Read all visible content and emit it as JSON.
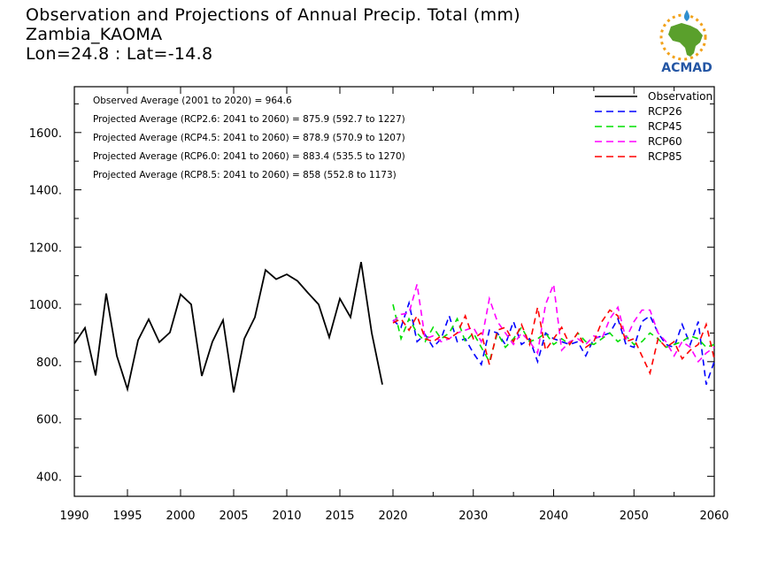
{
  "title_lines": [
    "Observation and Projections of Annual Precip. Total (mm)",
    "Zambia_KAOMA",
    "Lon=24.8 : Lat=-14.8"
  ],
  "logo": {
    "text": "ACMAD",
    "colors": {
      "africa": "#5aa02c",
      "text": "#2456a4",
      "sun": "#f2a21b"
    }
  },
  "chart_data": {
    "type": "line",
    "xlim": [
      1990,
      2060
    ],
    "ylim": [
      330,
      1760
    ],
    "x_ticks_labeled": [
      1990,
      1995,
      2000,
      2005,
      2010,
      2015,
      2020,
      2030,
      2040,
      2050,
      2060
    ],
    "y_ticks_labeled": [
      {
        "v": 400,
        "label": "400."
      },
      {
        "v": 600,
        "label": "600."
      },
      {
        "v": 800,
        "label": "800."
      },
      {
        "v": 1000,
        "label": "1000."
      },
      {
        "v": 1200,
        "label": "1200."
      },
      {
        "v": 1400,
        "label": "1400."
      },
      {
        "v": 1600,
        "label": "1600."
      }
    ],
    "annotations": [
      "Observed Average (2001 to 2020) = 964.6",
      "Projected Average (RCP2.6: 2041 to 2060) = 875.9 (592.7 to 1227)",
      "Projected Average (RCP4.5: 2041 to 2060) = 878.9 (570.9 to 1207)",
      "Projected Average (RCP6.0: 2041 to 2060) = 883.4 (535.5 to 1270)",
      "Projected Average (RCP8.5: 2041 to 2060) = 858 (552.8 to 1173)"
    ],
    "legend_position": "top-right",
    "series": [
      {
        "name": "Observation",
        "color": "#000000",
        "dashed": false,
        "x": [
          1990,
          1991,
          1992,
          1993,
          1994,
          1995,
          1996,
          1997,
          1998,
          1999,
          2000,
          2001,
          2002,
          2003,
          2004,
          2005,
          2006,
          2007,
          2008,
          2009,
          2010,
          2011,
          2012,
          2013,
          2014,
          2015,
          2016,
          2017,
          2018,
          2019
        ],
        "values": [
          863,
          918,
          752,
          1038,
          820,
          704,
          875,
          948,
          868,
          902,
          1035,
          1000,
          750,
          870,
          945,
          693,
          880,
          955,
          1120,
          1088,
          1105,
          1082,
          1040,
          1000,
          885,
          1020,
          955,
          1148,
          900,
          720
        ]
      },
      {
        "name": "RCP26",
        "color": "#0000ff",
        "dashed": true,
        "x": [
          2020,
          2021,
          2022,
          2023,
          2024,
          2025,
          2026,
          2027,
          2028,
          2029,
          2030,
          2031,
          2032,
          2033,
          2034,
          2035,
          2036,
          2037,
          2038,
          2039,
          2040,
          2041,
          2042,
          2043,
          2044,
          2045,
          2046,
          2047,
          2048,
          2049,
          2050,
          2051,
          2052,
          2053,
          2054,
          2055,
          2056,
          2057,
          2058,
          2059,
          2060
        ],
        "values": [
          945,
          920,
          1005,
          870,
          895,
          850,
          880,
          960,
          870,
          880,
          830,
          790,
          910,
          900,
          860,
          940,
          860,
          880,
          800,
          900,
          880,
          870,
          860,
          870,
          820,
          880,
          890,
          900,
          950,
          860,
          850,
          940,
          960,
          900,
          860,
          850,
          930,
          860,
          940,
          720,
          800
        ]
      },
      {
        "name": "RCP45",
        "color": "#00e000",
        "dashed": true,
        "x": [
          2020,
          2021,
          2022,
          2023,
          2024,
          2025,
          2026,
          2027,
          2028,
          2029,
          2030,
          2031,
          2032,
          2033,
          2034,
          2035,
          2036,
          2037,
          2038,
          2039,
          2040,
          2041,
          2042,
          2043,
          2044,
          2045,
          2046,
          2047,
          2048,
          2049,
          2050,
          2051,
          2052,
          2053,
          2054,
          2055,
          2056,
          2057,
          2058,
          2059,
          2060
        ],
        "values": [
          1000,
          880,
          950,
          900,
          870,
          920,
          880,
          900,
          950,
          870,
          900,
          850,
          800,
          900,
          850,
          880,
          920,
          870,
          880,
          900,
          860,
          880,
          860,
          900,
          870,
          860,
          880,
          900,
          870,
          890,
          860,
          870,
          900,
          880,
          850,
          860,
          870,
          890,
          880,
          850,
          860
        ]
      },
      {
        "name": "RCP60",
        "color": "#ff00ff",
        "dashed": true,
        "x": [
          2020,
          2021,
          2022,
          2023,
          2024,
          2025,
          2026,
          2027,
          2028,
          2029,
          2030,
          2031,
          2032,
          2033,
          2034,
          2035,
          2036,
          2037,
          2038,
          2039,
          2040,
          2041,
          2042,
          2043,
          2044,
          2045,
          2046,
          2047,
          2048,
          2049,
          2050,
          2051,
          2052,
          2053,
          2054,
          2055,
          2056,
          2057,
          2058,
          2059,
          2060
        ],
        "values": [
          940,
          965,
          970,
          1070,
          880,
          890,
          870,
          880,
          900,
          910,
          920,
          870,
          1020,
          940,
          900,
          860,
          900,
          870,
          830,
          1000,
          1070,
          840,
          870,
          880,
          860,
          890,
          880,
          950,
          990,
          880,
          940,
          980,
          980,
          900,
          870,
          820,
          870,
          850,
          800,
          830,
          850
        ]
      },
      {
        "name": "RCP85",
        "color": "#ff0000",
        "dashed": true,
        "x": [
          2020,
          2021,
          2022,
          2023,
          2024,
          2025,
          2026,
          2027,
          2028,
          2029,
          2030,
          2031,
          2032,
          2033,
          2034,
          2035,
          2036,
          2037,
          2038,
          2039,
          2040,
          2041,
          2042,
          2043,
          2044,
          2045,
          2046,
          2047,
          2048,
          2049,
          2050,
          2051,
          2052,
          2053,
          2054,
          2055,
          2056,
          2057,
          2058,
          2059,
          2060
        ],
        "values": [
          935,
          950,
          910,
          960,
          880,
          870,
          890,
          880,
          900,
          960,
          880,
          900,
          790,
          910,
          920,
          870,
          930,
          860,
          990,
          840,
          880,
          920,
          860,
          900,
          850,
          870,
          940,
          980,
          960,
          870,
          880,
          820,
          760,
          880,
          850,
          870,
          810,
          840,
          860,
          930,
          810
        ]
      }
    ]
  }
}
